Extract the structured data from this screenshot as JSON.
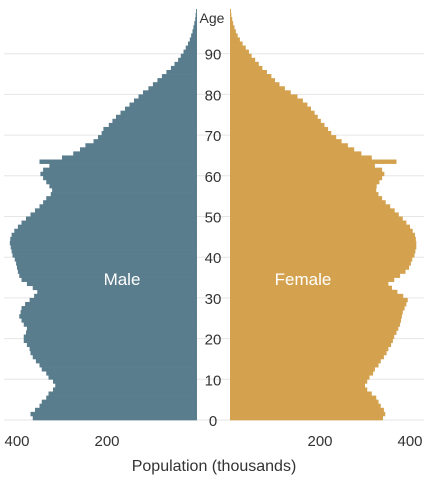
{
  "chart_data": {
    "type": "bar",
    "orientation": "population-pyramid",
    "age_axis_label": "Age",
    "age_ticks": [
      "0",
      "10",
      "20",
      "30",
      "40",
      "50",
      "60",
      "70",
      "80",
      "90"
    ],
    "xlabel": "Population (thousands)",
    "x_ticks_left": [
      "400",
      "200"
    ],
    "x_ticks_right": [
      "200",
      "400"
    ],
    "xlim": [
      0,
      420
    ],
    "ylim": [
      0,
      100
    ],
    "grid": "horizontal",
    "colors": {
      "male": "#5a7d8e",
      "female": "#d4a24e"
    },
    "series": [
      {
        "name": "Male",
        "values": [
          365,
          370,
          360,
          350,
          345,
          335,
          330,
          320,
          315,
          320,
          330,
          335,
          345,
          350,
          358,
          365,
          370,
          372,
          378,
          385,
          385,
          380,
          378,
          385,
          390,
          395,
          392,
          390,
          382,
          372,
          362,
          355,
          365,
          378,
          390,
          395,
          398,
          400,
          402,
          405,
          410,
          412,
          414,
          416,
          415,
          412,
          406,
          398,
          390,
          380,
          370,
          360,
          350,
          342,
          335,
          325,
          322,
          328,
          335,
          342,
          348,
          342,
          328,
          350,
          300,
          275,
          260,
          248,
          230,
          220,
          212,
          208,
          196,
          188,
          180,
          170,
          160,
          150,
          140,
          130,
          120,
          108,
          98,
          88,
          78,
          68,
          58,
          50,
          42,
          36,
          30,
          25,
          20,
          16,
          13,
          10,
          8,
          6,
          4,
          3,
          2
        ]
      },
      {
        "name": "Female",
        "values": [
          340,
          345,
          342,
          335,
          330,
          325,
          315,
          305,
          300,
          305,
          310,
          318,
          322,
          330,
          335,
          342,
          348,
          352,
          358,
          362,
          365,
          370,
          374,
          378,
          380,
          382,
          384,
          388,
          392,
          395,
          385,
          372,
          360,
          352,
          365,
          378,
          390,
          398,
          402,
          405,
          410,
          412,
          414,
          414,
          413,
          411,
          406,
          400,
          392,
          384,
          375,
          366,
          356,
          346,
          338,
          330,
          325,
          326,
          332,
          338,
          343,
          338,
          322,
          370,
          315,
          292,
          276,
          262,
          248,
          236,
          225,
          218,
          210,
          202,
          195,
          188,
          180,
          172,
          162,
          150,
          135,
          122,
          110,
          100,
          92,
          82,
          72,
          64,
          56,
          48,
          42,
          35,
          28,
          22,
          17,
          13,
          10,
          7,
          5,
          3,
          2
        ]
      }
    ]
  }
}
